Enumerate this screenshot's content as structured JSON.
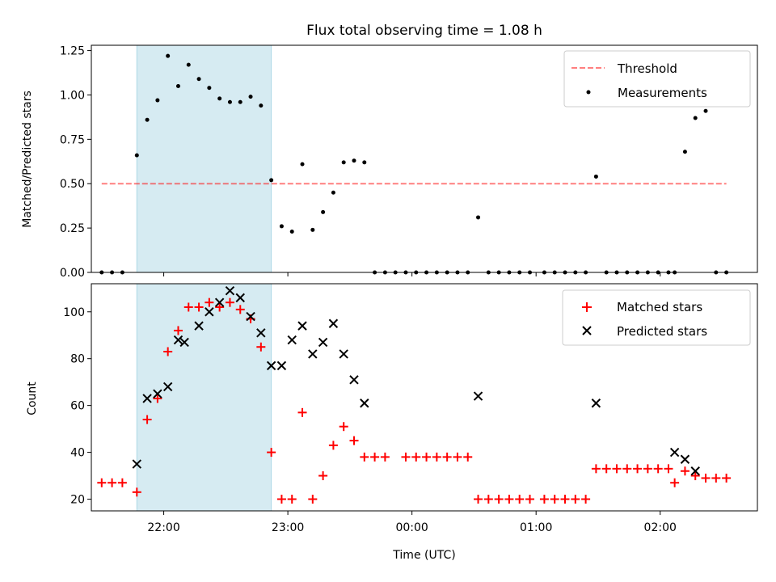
{
  "title": "Flux total observing time = 1.08 h",
  "colors": {
    "shade": "#add8e6",
    "threshold": "#ff0000",
    "measurement": "#000000",
    "matched": "#ff0000",
    "predicted": "#000000"
  },
  "chart_data": [
    {
      "type": "scatter",
      "ylabel": "Matched/Predicted stars",
      "ylim": [
        0,
        1.28
      ],
      "yticks": [
        0,
        0.25,
        0.5,
        0.75,
        1.0,
        1.25
      ],
      "ytick_labels": [
        "0.00",
        "0.25",
        "0.50",
        "0.75",
        "1.00",
        "1.25"
      ],
      "xlim": [
        "21:25",
        "02:47"
      ],
      "shaded_span": [
        "21:47",
        "22:52"
      ],
      "legend": {
        "position": "top-right",
        "entries": [
          "Threshold",
          "Measurements"
        ]
      },
      "threshold": {
        "name": "Threshold",
        "value": 0.5,
        "x": [
          "21:30",
          "02:32"
        ]
      },
      "series": [
        {
          "name": "Measurements",
          "x": [
            "21:30",
            "21:35",
            "21:40",
            "21:47",
            "21:52",
            "21:57",
            "22:02",
            "22:07",
            "22:12",
            "22:17",
            "22:22",
            "22:27",
            "22:32",
            "22:37",
            "22:42",
            "22:47",
            "22:52",
            "22:57",
            "23:02",
            "23:07",
            "23:12",
            "23:17",
            "23:22",
            "23:27",
            "23:32",
            "23:37",
            "23:42",
            "23:47",
            "23:52",
            "23:57",
            "00:02",
            "00:07",
            "00:12",
            "00:17",
            "00:22",
            "00:27",
            "00:32",
            "00:37",
            "00:42",
            "00:47",
            "00:52",
            "00:57",
            "01:04",
            "01:09",
            "01:14",
            "01:19",
            "01:24",
            "01:29",
            "01:34",
            "01:39",
            "01:44",
            "01:49",
            "01:54",
            "01:59",
            "02:04",
            "02:07",
            "02:12",
            "02:17",
            "02:22",
            "02:27",
            "02:32"
          ],
          "values": [
            0,
            0,
            0,
            0.66,
            0.86,
            0.97,
            1.22,
            1.05,
            1.17,
            1.09,
            1.04,
            0.98,
            0.96,
            0.96,
            0.99,
            0.94,
            0.52,
            0.26,
            0.23,
            0.61,
            0.24,
            0.34,
            0.45,
            0.62,
            0.63,
            0.62,
            0,
            0,
            0,
            0,
            0,
            0,
            0,
            0,
            0,
            0,
            0.31,
            0,
            0,
            0,
            0,
            0,
            0,
            0,
            0,
            0,
            0,
            0.54,
            0,
            0,
            0,
            0,
            0,
            0,
            0,
            0,
            0.68,
            0.87,
            0.91,
            0,
            0
          ]
        }
      ]
    },
    {
      "type": "scatter",
      "xlabel": "Time (UTC)",
      "ylabel": "Count",
      "ylim": [
        15,
        112
      ],
      "yticks": [
        20,
        40,
        60,
        80,
        100
      ],
      "ytick_labels": [
        "20",
        "40",
        "60",
        "80",
        "100"
      ],
      "xlim": [
        "21:25",
        "02:47"
      ],
      "xticks": [
        "22:00",
        "23:00",
        "00:00",
        "01:00",
        "02:00"
      ],
      "xtick_labels": [
        "22:00",
        "23:00",
        "00:00",
        "01:00",
        "02:00"
      ],
      "shaded_span": [
        "21:47",
        "22:52"
      ],
      "legend": {
        "position": "top-right",
        "entries": [
          "Matched stars",
          "Predicted stars"
        ]
      },
      "series": [
        {
          "name": "Matched stars",
          "marker": "+",
          "x": [
            "21:30",
            "21:35",
            "21:40",
            "21:47",
            "21:52",
            "21:57",
            "22:02",
            "22:07",
            "22:12",
            "22:17",
            "22:22",
            "22:27",
            "22:32",
            "22:37",
            "22:42",
            "22:47",
            "22:52",
            "22:57",
            "23:02",
            "23:07",
            "23:12",
            "23:17",
            "23:22",
            "23:27",
            "23:32",
            "23:37",
            "23:42",
            "23:47",
            "23:57",
            "00:02",
            "00:07",
            "00:12",
            "00:17",
            "00:22",
            "00:27",
            "00:32",
            "00:37",
            "00:42",
            "00:47",
            "00:52",
            "00:57",
            "01:04",
            "01:09",
            "01:14",
            "01:19",
            "01:24",
            "01:29",
            "01:34",
            "01:39",
            "01:44",
            "01:49",
            "01:54",
            "01:59",
            "02:04",
            "02:07",
            "02:12",
            "02:17",
            "02:22",
            "02:27",
            "02:32"
          ],
          "values": [
            27,
            27,
            27,
            23,
            54,
            63,
            83,
            92,
            102,
            102,
            104,
            102,
            104,
            101,
            97,
            85,
            40,
            20,
            20,
            57,
            20,
            30,
            43,
            51,
            45,
            38,
            38,
            38,
            38,
            38,
            38,
            38,
            38,
            38,
            38,
            20,
            20,
            20,
            20,
            20,
            20,
            20,
            20,
            20,
            20,
            20,
            33,
            33,
            33,
            33,
            33,
            33,
            33,
            33,
            27,
            32,
            30,
            29,
            29,
            29
          ]
        },
        {
          "name": "Predicted stars",
          "marker": "x",
          "x": [
            "21:47",
            "21:52",
            "21:57",
            "22:02",
            "22:07",
            "22:10",
            "22:17",
            "22:22",
            "22:27",
            "22:32",
            "22:37",
            "22:42",
            "22:47",
            "22:52",
            "22:57",
            "23:02",
            "23:07",
            "23:12",
            "23:17",
            "23:22",
            "23:27",
            "23:32",
            "23:37",
            "00:32",
            "01:29",
            "02:07",
            "02:12",
            "02:17"
          ],
          "values": [
            35,
            63,
            65,
            68,
            88,
            87,
            94,
            100,
            104,
            109,
            106,
            98,
            91,
            77,
            77,
            88,
            94,
            82,
            87,
            95,
            82,
            71,
            61,
            64,
            61,
            40,
            37,
            32
          ]
        }
      ]
    }
  ]
}
